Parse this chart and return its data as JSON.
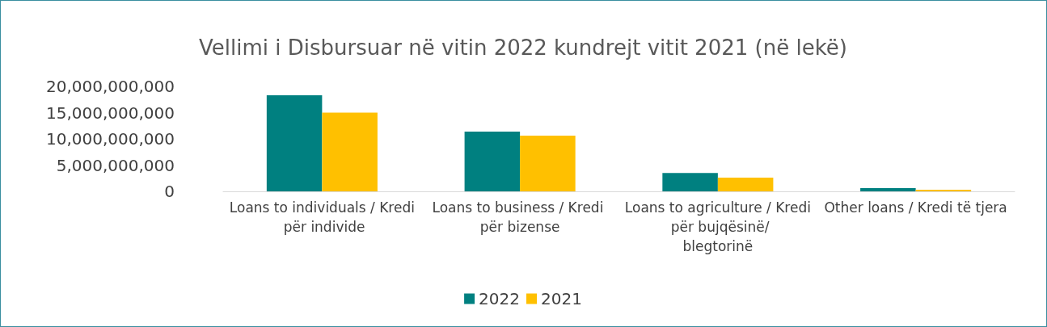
{
  "chart_data": {
    "type": "bar",
    "title": "Vellimi i Disbursuar në vitin 2022 kundrejt vitit 2021 (në lekë)",
    "categories": [
      "Loans to individuals / Kredi për individe",
      "Loans to business / Kredi për bizense",
      "Loans to agriculture / Kredi për bujqësinë/blegtorinë",
      "Other loans / Kredi të tjera"
    ],
    "series": [
      {
        "name": "2022",
        "color": "#008080",
        "values": [
          18300000000,
          11400000000,
          3500000000,
          600000000
        ]
      },
      {
        "name": "2021",
        "color": "#ffc000",
        "values": [
          15000000000,
          10600000000,
          2600000000,
          300000000
        ]
      }
    ],
    "ylim": [
      0,
      20000000000
    ],
    "yticks": [
      {
        "value": 0,
        "label": "0"
      },
      {
        "value": 5000000000,
        "label": "5,000,000,000"
      },
      {
        "value": 10000000000,
        "label": "10,000,000,000"
      },
      {
        "value": 15000000000,
        "label": "15,000,000,000"
      },
      {
        "value": 20000000000,
        "label": "20,000,000,000"
      }
    ],
    "grid": false,
    "legend": "bottom"
  }
}
